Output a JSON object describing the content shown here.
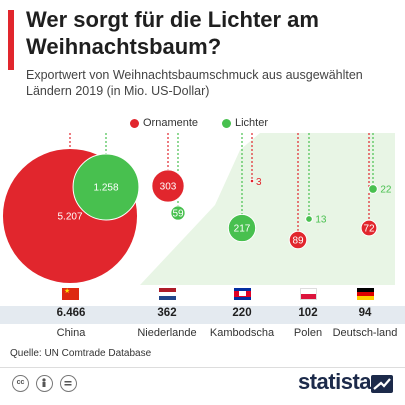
{
  "header": {
    "title": "Wer sorgt für die Lichter am Weihnachtsbaum?",
    "subtitle": "Exportwert von Weihnachtsbaumschmuck aus ausgewählten Ländern 2019 (in Mio. US-Dollar)"
  },
  "legend": {
    "ornaments": "Ornamente",
    "lights": "Lichter"
  },
  "colors": {
    "ornaments": "#e1262d",
    "lights": "#48c04f",
    "accent": "#e1262d",
    "band": "#e4eaf0"
  },
  "chart_data": {
    "type": "bubble",
    "title": "Wer sorgt für die Lichter am Weihnachtsbaum?",
    "categories": [
      "China",
      "Niederlande",
      "Kambodscha",
      "Polen",
      "Deutsch-land"
    ],
    "totals": [
      "6.466",
      "362",
      "220",
      "102",
      "94"
    ],
    "series": [
      {
        "name": "Ornamente",
        "values": [
          5207,
          303,
          3,
          89,
          72
        ],
        "labels": [
          "5.207",
          "303",
          "3",
          "89",
          "72"
        ]
      },
      {
        "name": "Lichter",
        "values": [
          1258,
          59,
          217,
          13,
          22
        ],
        "labels": [
          "1.258",
          "59",
          "217",
          "13",
          "22"
        ]
      }
    ],
    "flags": [
      "china-flag-icon",
      "netherlands-flag-icon",
      "cambodia-flag-icon",
      "poland-flag-icon",
      "germany-flag-icon"
    ]
  },
  "footer": {
    "source": "Quelle: UN Comtrade Database",
    "brand": "statista",
    "license_icons": [
      "cc-icon",
      "by-icon",
      "nd-icon"
    ]
  }
}
